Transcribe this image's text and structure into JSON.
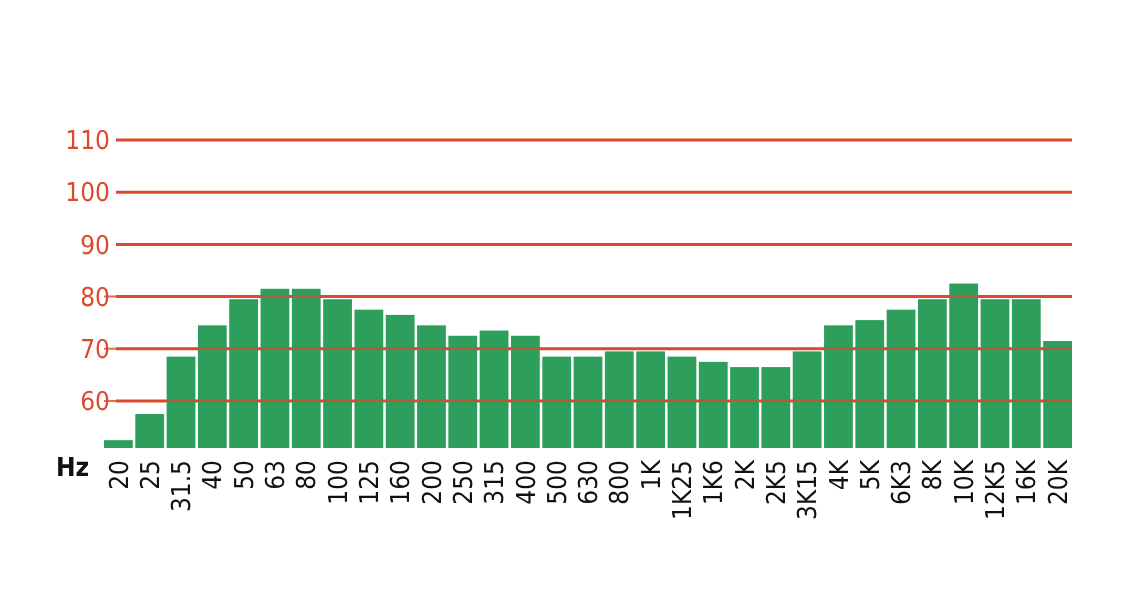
{
  "chart_data": {
    "type": "bar",
    "xlabel": "Hz",
    "categories": [
      "20",
      "25",
      "31.5",
      "40",
      "50",
      "63",
      "80",
      "100",
      "125",
      "160",
      "200",
      "250",
      "315",
      "400",
      "500",
      "630",
      "800",
      "1K",
      "1K25",
      "1K6",
      "2K",
      "2K5",
      "3K15",
      "4K",
      "5K",
      "6K3",
      "8K",
      "10K",
      "12K5",
      "16K",
      "20K"
    ],
    "values": [
      52.5,
      57.5,
      68.5,
      74.5,
      79.5,
      81.5,
      81.5,
      79.5,
      77.5,
      76.5,
      74.5,
      72.5,
      73.5,
      72.5,
      68.5,
      68.5,
      69.5,
      69.5,
      68.5,
      67.5,
      66.5,
      66.5,
      69.5,
      74.5,
      75.5,
      77.5,
      79.5,
      82.5,
      79.5,
      79.5,
      71.5
    ],
    "color": "#2e9e5c",
    "ylim": [
      51,
      110
    ],
    "yticks": [
      60,
      70,
      80,
      90,
      100,
      110
    ],
    "grid": "y"
  }
}
